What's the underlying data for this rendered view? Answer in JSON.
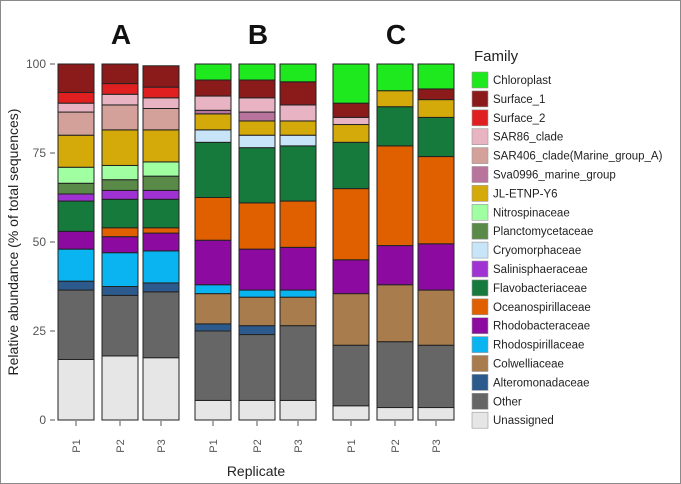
{
  "chart_data": {
    "type": "bar",
    "stacked": true,
    "ylabel": "Relative abundance (% of total sequences)",
    "xlabel": "Replicate",
    "ylim": [
      0,
      100
    ],
    "yticks": [
      "0",
      "25",
      "50",
      "75",
      "100"
    ],
    "legend_title": "Family",
    "legend_position": "right",
    "families": [
      {
        "name": "Chloroplast",
        "color": "#1ee81e"
      },
      {
        "name": "Surface_1",
        "color": "#8b1a1a"
      },
      {
        "name": "Surface_2",
        "color": "#e02020"
      },
      {
        "name": "SAR86_clade",
        "color": "#e8b4c4"
      },
      {
        "name": "SAR406_clade(Marine_group_A)",
        "color": "#d4a09a"
      },
      {
        "name": "Sva0996_marine_group",
        "color": "#b8749c"
      },
      {
        "name": "JL-ETNP-Y6",
        "color": "#d4aa0a"
      },
      {
        "name": "Nitrospinaceae",
        "color": "#a0ffa0"
      },
      {
        "name": "Planctomycetaceae",
        "color": "#5a8a48"
      },
      {
        "name": "Cryomorphaceae",
        "color": "#c8e4f8"
      },
      {
        "name": "Salinisphaeraceae",
        "color": "#a032d4"
      },
      {
        "name": "Flavobacteriaceae",
        "color": "#157a3c"
      },
      {
        "name": "Oceanospirillaceae",
        "color": "#e06000"
      },
      {
        "name": "Rhodobacteraceae",
        "color": "#8c0aa0"
      },
      {
        "name": "Rhodospirillaceae",
        "color": "#0ab4f0"
      },
      {
        "name": "Colwelliaceae",
        "color": "#a87c4c"
      },
      {
        "name": "Alteromonadaceae",
        "color": "#2c5a8c"
      },
      {
        "name": "Other",
        "color": "#666666"
      },
      {
        "name": "Unassigned",
        "color": "#e6e6e6"
      }
    ],
    "panels": [
      {
        "label": "A",
        "replicates": [
          {
            "name": "P1",
            "values": {
              "Unassigned": 17,
              "Other": 19.5,
              "Alteromonadaceae": 2.5,
              "Colwelliaceae": 0,
              "Rhodospirillaceae": 9,
              "Rhodobacteraceae": 5,
              "Oceanospirillaceae": 0,
              "Flavobacteriaceae": 8.5,
              "Salinisphaeraceae": 2,
              "Cryomorphaceae": 0,
              "Planctomycetaceae": 3,
              "Nitrospinaceae": 4.5,
              "JL-ETNP-Y6": 9,
              "Sva0996_marine_group": 0,
              "SAR406_clade(Marine_group_A)": 6.5,
              "SAR86_clade": 2.5,
              "Surface_2": 3,
              "Surface_1": 8,
              "Chloroplast": 0
            }
          },
          {
            "name": "P2",
            "values": {
              "Unassigned": 18,
              "Other": 17,
              "Alteromonadaceae": 2.5,
              "Colwelliaceae": 0,
              "Rhodospirillaceae": 9.5,
              "Rhodobacteraceae": 4.5,
              "Oceanospirillaceae": 2.5,
              "Flavobacteriaceae": 8,
              "Salinisphaeraceae": 2.5,
              "Cryomorphaceae": 0,
              "Planctomycetaceae": 3,
              "Nitrospinaceae": 4,
              "JL-ETNP-Y6": 10,
              "Sva0996_marine_group": 0,
              "SAR406_clade(Marine_group_A)": 7,
              "SAR86_clade": 3,
              "Surface_2": 3,
              "Surface_1": 5.5,
              "Chloroplast": 0
            }
          },
          {
            "name": "P3",
            "values": {
              "Unassigned": 17.5,
              "Other": 18.5,
              "Alteromonadaceae": 2.5,
              "Colwelliaceae": 0,
              "Rhodospirillaceae": 9,
              "Rhodobacteraceae": 5,
              "Oceanospirillaceae": 1.5,
              "Flavobacteriaceae": 8,
              "Salinisphaeraceae": 2.5,
              "Cryomorphaceae": 0,
              "Planctomycetaceae": 4,
              "Nitrospinaceae": 4,
              "JL-ETNP-Y6": 9,
              "Sva0996_marine_group": 0,
              "SAR406_clade(Marine_group_A)": 6,
              "SAR86_clade": 3,
              "Surface_2": 3,
              "Surface_1": 6,
              "Chloroplast": 0
            }
          }
        ]
      },
      {
        "label": "B",
        "replicates": [
          {
            "name": "P1",
            "values": {
              "Unassigned": 5.5,
              "Other": 19.5,
              "Alteromonadaceae": 2,
              "Colwelliaceae": 8.5,
              "Rhodospirillaceae": 2.5,
              "Rhodobacteraceae": 12.5,
              "Oceanospirillaceae": 12,
              "Flavobacteriaceae": 15.5,
              "Salinisphaeraceae": 0,
              "Cryomorphaceae": 3.5,
              "Planctomycetaceae": 0,
              "Nitrospinaceae": 0,
              "JL-ETNP-Y6": 4.5,
              "Sva0996_marine_group": 1,
              "SAR406_clade(Marine_group_A)": 0,
              "SAR86_clade": 4,
              "Surface_2": 0,
              "Surface_1": 4.5,
              "Chloroplast": 4.5
            }
          },
          {
            "name": "P2",
            "values": {
              "Unassigned": 5.5,
              "Other": 18.5,
              "Alteromonadaceae": 2.5,
              "Colwelliaceae": 8,
              "Rhodospirillaceae": 2,
              "Rhodobacteraceae": 11.5,
              "Oceanospirillaceae": 13,
              "Flavobacteriaceae": 15.5,
              "Salinisphaeraceae": 0,
              "Cryomorphaceae": 3.5,
              "Planctomycetaceae": 0,
              "Nitrospinaceae": 0,
              "JL-ETNP-Y6": 4,
              "Sva0996_marine_group": 2.5,
              "SAR406_clade(Marine_group_A)": 0,
              "SAR86_clade": 4,
              "Surface_2": 0,
              "Surface_1": 5,
              "Chloroplast": 4.5
            }
          },
          {
            "name": "P3",
            "values": {
              "Unassigned": 5.5,
              "Other": 21,
              "Alteromonadaceae": 0,
              "Colwelliaceae": 8,
              "Rhodospirillaceae": 2,
              "Rhodobacteraceae": 12,
              "Oceanospirillaceae": 13,
              "Flavobacteriaceae": 15.5,
              "Salinisphaeraceae": 0,
              "Cryomorphaceae": 3,
              "Planctomycetaceae": 0,
              "Nitrospinaceae": 0,
              "JL-ETNP-Y6": 4,
              "Sva0996_marine_group": 0,
              "SAR406_clade(Marine_group_A)": 0,
              "SAR86_clade": 4.5,
              "Surface_2": 0,
              "Surface_1": 6.5,
              "Chloroplast": 5
            }
          }
        ]
      },
      {
        "label": "C",
        "replicates": [
          {
            "name": "P1",
            "values": {
              "Unassigned": 4,
              "Other": 17,
              "Alteromonadaceae": 0,
              "Colwelliaceae": 14.5,
              "Rhodospirillaceae": 0,
              "Rhodobacteraceae": 9.5,
              "Oceanospirillaceae": 20,
              "Flavobacteriaceae": 13,
              "Salinisphaeraceae": 0,
              "Cryomorphaceae": 0,
              "Planctomycetaceae": 0,
              "Nitrospinaceae": 0,
              "JL-ETNP-Y6": 5,
              "Sva0996_marine_group": 0,
              "SAR406_clade(Marine_group_A)": 0,
              "SAR86_clade": 2,
              "Surface_2": 0,
              "Surface_1": 4,
              "Chloroplast": 11
            }
          },
          {
            "name": "P2",
            "values": {
              "Unassigned": 3.5,
              "Other": 18.5,
              "Alteromonadaceae": 0,
              "Colwelliaceae": 16,
              "Rhodospirillaceae": 0,
              "Rhodobacteraceae": 11,
              "Oceanospirillaceae": 28,
              "Flavobacteriaceae": 11,
              "Salinisphaeraceae": 0,
              "Cryomorphaceae": 0,
              "Planctomycetaceae": 0,
              "Nitrospinaceae": 0,
              "JL-ETNP-Y6": 4.5,
              "Sva0996_marine_group": 0,
              "SAR406_clade(Marine_group_A)": 0,
              "SAR86_clade": 0,
              "Surface_2": 0,
              "Surface_1": 0,
              "Chloroplast": 7.5
            }
          },
          {
            "name": "P3",
            "values": {
              "Unassigned": 3.5,
              "Other": 17.5,
              "Alteromonadaceae": 0,
              "Colwelliaceae": 15.5,
              "Rhodospirillaceae": 0,
              "Rhodobacteraceae": 13,
              "Oceanospirillaceae": 24.5,
              "Flavobacteriaceae": 11,
              "Salinisphaeraceae": 0,
              "Cryomorphaceae": 0,
              "Planctomycetaceae": 0,
              "Nitrospinaceae": 0,
              "JL-ETNP-Y6": 5,
              "Sva0996_marine_group": 0,
              "SAR406_clade(Marine_group_A)": 0,
              "SAR86_clade": 0,
              "Surface_2": 0,
              "Surface_1": 3,
              "Chloroplast": 7
            }
          }
        ]
      }
    ]
  }
}
